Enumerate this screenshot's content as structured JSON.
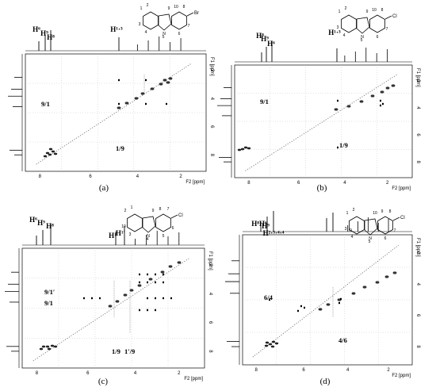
{
  "panels": [
    {
      "id": "a",
      "caption": "(a)",
      "x_axis_label": "F2 [ppm]",
      "y_axis_label": "F1 [ppm]",
      "x_ticks": [
        "8",
        "6",
        "4",
        "2"
      ],
      "y_ticks": [
        "2",
        "4",
        "6",
        "8"
      ],
      "peak_labels": [
        "H⁶",
        "H⁹",
        "H⁸",
        "H¹·³"
      ],
      "crosspeaks": [
        "9/1",
        "1/9"
      ],
      "molecule": {
        "atoms": [
          "1",
          "2",
          "3",
          "4",
          "5",
          "9",
          "10",
          "8",
          "7",
          "6"
        ],
        "substituent": "Br",
        "heteroatom": "N"
      }
    },
    {
      "id": "b",
      "caption": "(b)",
      "x_axis_label": "F2 [ppm]",
      "y_axis_label": "F1 [ppm]",
      "x_ticks": [
        "8",
        "6",
        "4",
        "2"
      ],
      "y_ticks": [
        "2",
        "4",
        "6",
        "8"
      ],
      "peak_labels": [
        "H⁸",
        "H⁹",
        "H⁶",
        "H¹·³"
      ],
      "crosspeaks": [
        "9/1",
        "1/9"
      ],
      "molecule": {
        "atoms": [
          "1",
          "2",
          "3",
          "4",
          "5",
          "9",
          "10",
          "8",
          "7",
          "6"
        ],
        "substituent": "Cl",
        "heteroatom": "N"
      }
    },
    {
      "id": "c",
      "caption": "(c)",
      "x_axis_label": "F2 [ppm]",
      "y_axis_label": "F1 [ppm]",
      "x_ticks": [
        "8",
        "6",
        "4",
        "2"
      ],
      "y_ticks": [
        "2",
        "4",
        "6",
        "8"
      ],
      "peak_labels": [
        "H⁶",
        "H⁹",
        "H⁸",
        "H¹",
        "H¹′"
      ],
      "crosspeaks": [
        "9/1′",
        "9/1",
        "1/9",
        "1′/9"
      ],
      "molecule": {
        "atoms": [
          "2",
          "1",
          "10",
          "3",
          "4",
          "9",
          "8",
          "7",
          "6",
          "5"
        ],
        "substituent": "Cl",
        "heteroatom": "N"
      }
    },
    {
      "id": "d",
      "caption": "(d)",
      "x_axis_label": "F2 [ppm]",
      "y_axis_label": "F1 [ppm]",
      "x_ticks": [
        "8",
        "6",
        "4",
        "2"
      ],
      "y_ticks": [
        "2",
        "4",
        "6",
        "8"
      ],
      "peak_labels": [
        "H⁸H⁶",
        "H⁹",
        "H²·³·⁴·⁴"
      ],
      "crosspeaks": [
        "6/4",
        "4/6"
      ],
      "molecule": {
        "atoms": [
          "1",
          "2",
          "3",
          "4",
          "5",
          "10",
          "9",
          "8",
          "7",
          "6"
        ],
        "substituent": "Cl",
        "heteroatom": "N",
        "ring_atom": "O"
      }
    }
  ]
}
